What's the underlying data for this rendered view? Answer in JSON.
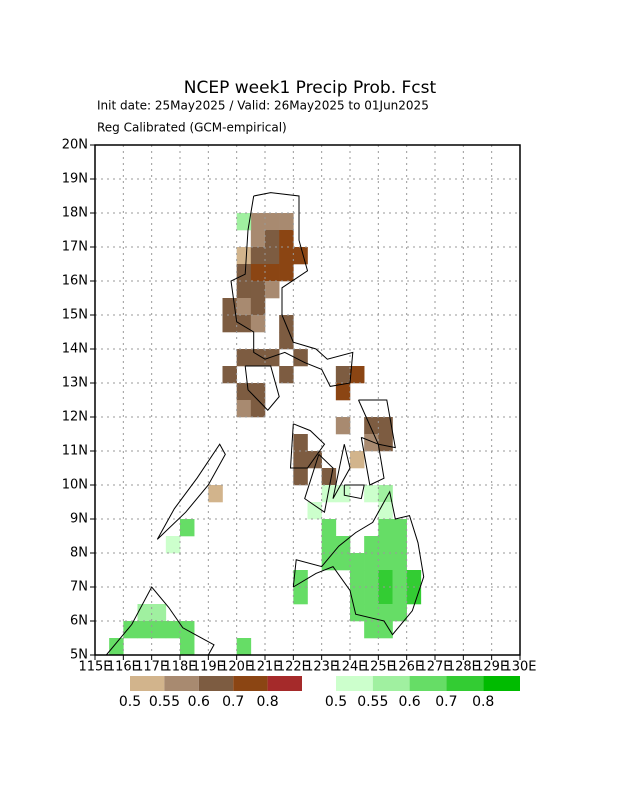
{
  "chart_data": {
    "type": "grid-map",
    "title": "NCEP week1 Precip Prob. Fcst",
    "subtitle": "Init date: 25May2025 / Valid: 26May2025 to 01Jun2025",
    "subtitle2": "Reg Calibrated (GCM-empirical)",
    "xlim": [
      115,
      130
    ],
    "ylim": [
      5,
      20
    ],
    "cell_size": 0.5,
    "grid": true,
    "xticks": [
      {
        "value": 115,
        "label": "115E"
      },
      {
        "value": 116,
        "label": "116E"
      },
      {
        "value": 117,
        "label": "117E"
      },
      {
        "value": 118,
        "label": "118E"
      },
      {
        "value": 119,
        "label": "119E"
      },
      {
        "value": 120,
        "label": "120E"
      },
      {
        "value": 121,
        "label": "121E"
      },
      {
        "value": 122,
        "label": "122E"
      },
      {
        "value": 123,
        "label": "123E"
      },
      {
        "value": 124,
        "label": "124E"
      },
      {
        "value": 125,
        "label": "125E"
      },
      {
        "value": 126,
        "label": "126E"
      },
      {
        "value": 127,
        "label": "127E"
      },
      {
        "value": 128,
        "label": "128E"
      },
      {
        "value": 129,
        "label": "129E"
      },
      {
        "value": 130,
        "label": "130E"
      }
    ],
    "yticks": [
      {
        "value": 5,
        "label": "5N"
      },
      {
        "value": 6,
        "label": "6N"
      },
      {
        "value": 7,
        "label": "7N"
      },
      {
        "value": 8,
        "label": "8N"
      },
      {
        "value": 9,
        "label": "9N"
      },
      {
        "value": 10,
        "label": "10N"
      },
      {
        "value": 11,
        "label": "11N"
      },
      {
        "value": 12,
        "label": "12N"
      },
      {
        "value": 13,
        "label": "13N"
      },
      {
        "value": 14,
        "label": "14N"
      },
      {
        "value": 15,
        "label": "15N"
      },
      {
        "value": 16,
        "label": "16N"
      },
      {
        "value": 17,
        "label": "17N"
      },
      {
        "value": 18,
        "label": "18N"
      },
      {
        "value": 19,
        "label": "19N"
      },
      {
        "value": 20,
        "label": "20N"
      }
    ],
    "series": [
      {
        "levels": [
          0.5,
          0.55,
          0.6,
          0.7,
          0.8
        ],
        "colors": [
          "#d2b48c",
          "#a88a70",
          "#7d5c41",
          "#8b4513",
          "#a52a2a"
        ],
        "cells": [
          {
            "lon": 120.5,
            "lat": 17.5,
            "value": 0.55
          },
          {
            "lon": 121,
            "lat": 17.5,
            "value": 0.55
          },
          {
            "lon": 121.5,
            "lat": 17.5,
            "value": 0.55
          },
          {
            "lon": 120.5,
            "lat": 17,
            "value": 0.55
          },
          {
            "lon": 121,
            "lat": 17,
            "value": 0.6
          },
          {
            "lon": 121.5,
            "lat": 17,
            "value": 0.7
          },
          {
            "lon": 120,
            "lat": 16.5,
            "value": 0.5
          },
          {
            "lon": 120.5,
            "lat": 16.5,
            "value": 0.6
          },
          {
            "lon": 121,
            "lat": 16.5,
            "value": 0.6
          },
          {
            "lon": 121.5,
            "lat": 16.5,
            "value": 0.7
          },
          {
            "lon": 122,
            "lat": 16.5,
            "value": 0.7
          },
          {
            "lon": 120,
            "lat": 16,
            "value": 0.6
          },
          {
            "lon": 120.5,
            "lat": 16,
            "value": 0.7
          },
          {
            "lon": 121,
            "lat": 16,
            "value": 0.7
          },
          {
            "lon": 121.5,
            "lat": 16,
            "value": 0.7
          },
          {
            "lon": 120,
            "lat": 15.5,
            "value": 0.6
          },
          {
            "lon": 120.5,
            "lat": 15.5,
            "value": 0.6
          },
          {
            "lon": 121,
            "lat": 15.5,
            "value": 0.55
          },
          {
            "lon": 119.5,
            "lat": 15,
            "value": 0.6
          },
          {
            "lon": 120,
            "lat": 15,
            "value": 0.55
          },
          {
            "lon": 120.5,
            "lat": 15,
            "value": 0.6
          },
          {
            "lon": 119.5,
            "lat": 14.5,
            "value": 0.6
          },
          {
            "lon": 120,
            "lat": 14.5,
            "value": 0.6
          },
          {
            "lon": 120.5,
            "lat": 14.5,
            "value": 0.55
          },
          {
            "lon": 121.5,
            "lat": 14.5,
            "value": 0.6
          },
          {
            "lon": 121.5,
            "lat": 14,
            "value": 0.6
          },
          {
            "lon": 120,
            "lat": 13.5,
            "value": 0.6
          },
          {
            "lon": 120.5,
            "lat": 13.5,
            "value": 0.6
          },
          {
            "lon": 121,
            "lat": 13.5,
            "value": 0.6
          },
          {
            "lon": 122,
            "lat": 13.5,
            "value": 0.6
          },
          {
            "lon": 119.5,
            "lat": 13,
            "value": 0.6
          },
          {
            "lon": 121.5,
            "lat": 13,
            "value": 0.6
          },
          {
            "lon": 123.5,
            "lat": 13,
            "value": 0.6
          },
          {
            "lon": 124,
            "lat": 13,
            "value": 0.7
          },
          {
            "lon": 120,
            "lat": 12.5,
            "value": 0.6
          },
          {
            "lon": 120.5,
            "lat": 12.5,
            "value": 0.6
          },
          {
            "lon": 123.5,
            "lat": 12.5,
            "value": 0.7
          },
          {
            "lon": 120,
            "lat": 12,
            "value": 0.55
          },
          {
            "lon": 120.5,
            "lat": 12,
            "value": 0.6
          },
          {
            "lon": 123.5,
            "lat": 11.5,
            "value": 0.55
          },
          {
            "lon": 124.5,
            "lat": 11.5,
            "value": 0.6
          },
          {
            "lon": 125,
            "lat": 11.5,
            "value": 0.6
          },
          {
            "lon": 122,
            "lat": 11,
            "value": 0.6
          },
          {
            "lon": 124.5,
            "lat": 11,
            "value": 0.55
          },
          {
            "lon": 125,
            "lat": 11,
            "value": 0.6
          },
          {
            "lon": 122,
            "lat": 10.5,
            "value": 0.6
          },
          {
            "lon": 122.5,
            "lat": 10.5,
            "value": 0.6
          },
          {
            "lon": 124,
            "lat": 10.5,
            "value": 0.5
          },
          {
            "lon": 122,
            "lat": 10,
            "value": 0.6
          },
          {
            "lon": 123,
            "lat": 10,
            "value": 0.6
          },
          {
            "lon": 119,
            "lat": 9.5,
            "value": 0.5
          }
        ]
      },
      {
        "levels": [
          0.5,
          0.55,
          0.6,
          0.7,
          0.8
        ],
        "colors": [
          "#ccffcc",
          "#a0f0a0",
          "#66dd66",
          "#33cc33",
          "#00bb00"
        ],
        "cells": [
          {
            "lon": 120,
            "lat": 17.5,
            "value": 0.55
          },
          {
            "lon": 123,
            "lat": 9.5,
            "value": 0.5
          },
          {
            "lon": 123.5,
            "lat": 9.5,
            "value": 0.5
          },
          {
            "lon": 124.5,
            "lat": 9.5,
            "value": 0.5
          },
          {
            "lon": 125,
            "lat": 9.5,
            "value": 0.55
          },
          {
            "lon": 122.5,
            "lat": 9,
            "value": 0.5
          },
          {
            "lon": 125,
            "lat": 9,
            "value": 0.5
          },
          {
            "lon": 118,
            "lat": 8.5,
            "value": 0.6
          },
          {
            "lon": 123,
            "lat": 8.5,
            "value": 0.6
          },
          {
            "lon": 125,
            "lat": 8.5,
            "value": 0.6
          },
          {
            "lon": 125.5,
            "lat": 8.5,
            "value": 0.6
          },
          {
            "lon": 117.5,
            "lat": 8,
            "value": 0.5
          },
          {
            "lon": 123,
            "lat": 8,
            "value": 0.6
          },
          {
            "lon": 123.5,
            "lat": 8,
            "value": 0.6
          },
          {
            "lon": 124.5,
            "lat": 8,
            "value": 0.6
          },
          {
            "lon": 125,
            "lat": 8,
            "value": 0.6
          },
          {
            "lon": 125.5,
            "lat": 8,
            "value": 0.6
          },
          {
            "lon": 123,
            "lat": 7.5,
            "value": 0.6
          },
          {
            "lon": 123.5,
            "lat": 7.5,
            "value": 0.6
          },
          {
            "lon": 124,
            "lat": 7.5,
            "value": 0.6
          },
          {
            "lon": 124.5,
            "lat": 7.5,
            "value": 0.6
          },
          {
            "lon": 125,
            "lat": 7.5,
            "value": 0.6
          },
          {
            "lon": 125.5,
            "lat": 7.5,
            "value": 0.6
          },
          {
            "lon": 122,
            "lat": 7,
            "value": 0.6
          },
          {
            "lon": 124,
            "lat": 7,
            "value": 0.6
          },
          {
            "lon": 124.5,
            "lat": 7,
            "value": 0.6
          },
          {
            "lon": 125,
            "lat": 7,
            "value": 0.7
          },
          {
            "lon": 125.5,
            "lat": 7,
            "value": 0.6
          },
          {
            "lon": 126,
            "lat": 7,
            "value": 0.7
          },
          {
            "lon": 122,
            "lat": 6.5,
            "value": 0.6
          },
          {
            "lon": 124,
            "lat": 6.5,
            "value": 0.6
          },
          {
            "lon": 124.5,
            "lat": 6.5,
            "value": 0.6
          },
          {
            "lon": 125,
            "lat": 6.5,
            "value": 0.7
          },
          {
            "lon": 125.5,
            "lat": 6.5,
            "value": 0.6
          },
          {
            "lon": 126,
            "lat": 6.5,
            "value": 0.7
          },
          {
            "lon": 116.5,
            "lat": 6,
            "value": 0.55
          },
          {
            "lon": 117,
            "lat": 6,
            "value": 0.55
          },
          {
            "lon": 124,
            "lat": 6,
            "value": 0.6
          },
          {
            "lon": 124.5,
            "lat": 6,
            "value": 0.6
          },
          {
            "lon": 125,
            "lat": 6,
            "value": 0.6
          },
          {
            "lon": 125.5,
            "lat": 6,
            "value": 0.6
          },
          {
            "lon": 116,
            "lat": 5.5,
            "value": 0.6
          },
          {
            "lon": 116.5,
            "lat": 5.5,
            "value": 0.6
          },
          {
            "lon": 117,
            "lat": 5.5,
            "value": 0.6
          },
          {
            "lon": 117.5,
            "lat": 5.5,
            "value": 0.6
          },
          {
            "lon": 118,
            "lat": 5.5,
            "value": 0.6
          },
          {
            "lon": 124.5,
            "lat": 5.5,
            "value": 0.6
          },
          {
            "lon": 125,
            "lat": 5.5,
            "value": 0.6
          },
          {
            "lon": 115.5,
            "lat": 5,
            "value": 0.6
          },
          {
            "lon": 118,
            "lat": 5,
            "value": 0.6
          },
          {
            "lon": 120,
            "lat": 5,
            "value": 0.6
          }
        ]
      }
    ]
  }
}
